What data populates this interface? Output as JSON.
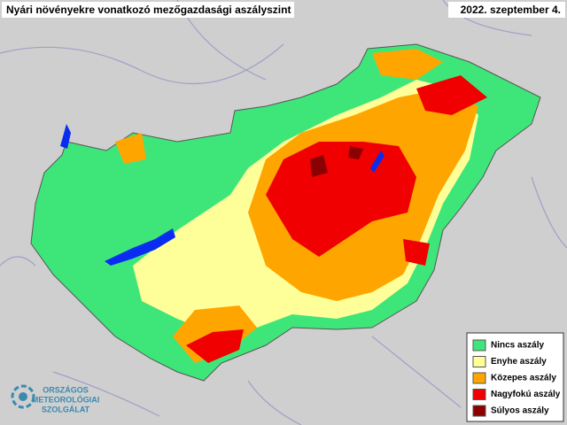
{
  "header": {
    "title": "Nyári növényekre vonatkozó mezőgazdasági aszályszint",
    "date": "2022. szeptember 4."
  },
  "legend": {
    "items": [
      {
        "label": "Nincs aszály",
        "color": "#3ee67a"
      },
      {
        "label": "Enyhe aszály",
        "color": "#ffff99"
      },
      {
        "label": "Közepes aszály",
        "color": "#ffa500"
      },
      {
        "label": "Nagyfokú aszály",
        "color": "#f00000"
      },
      {
        "label": "Súlyos aszály",
        "color": "#8b0000"
      }
    ]
  },
  "logo": {
    "lines": [
      "ORSZÁGOS",
      "METEOROLÓGIAI",
      "SZOLGÁLAT"
    ]
  }
}
